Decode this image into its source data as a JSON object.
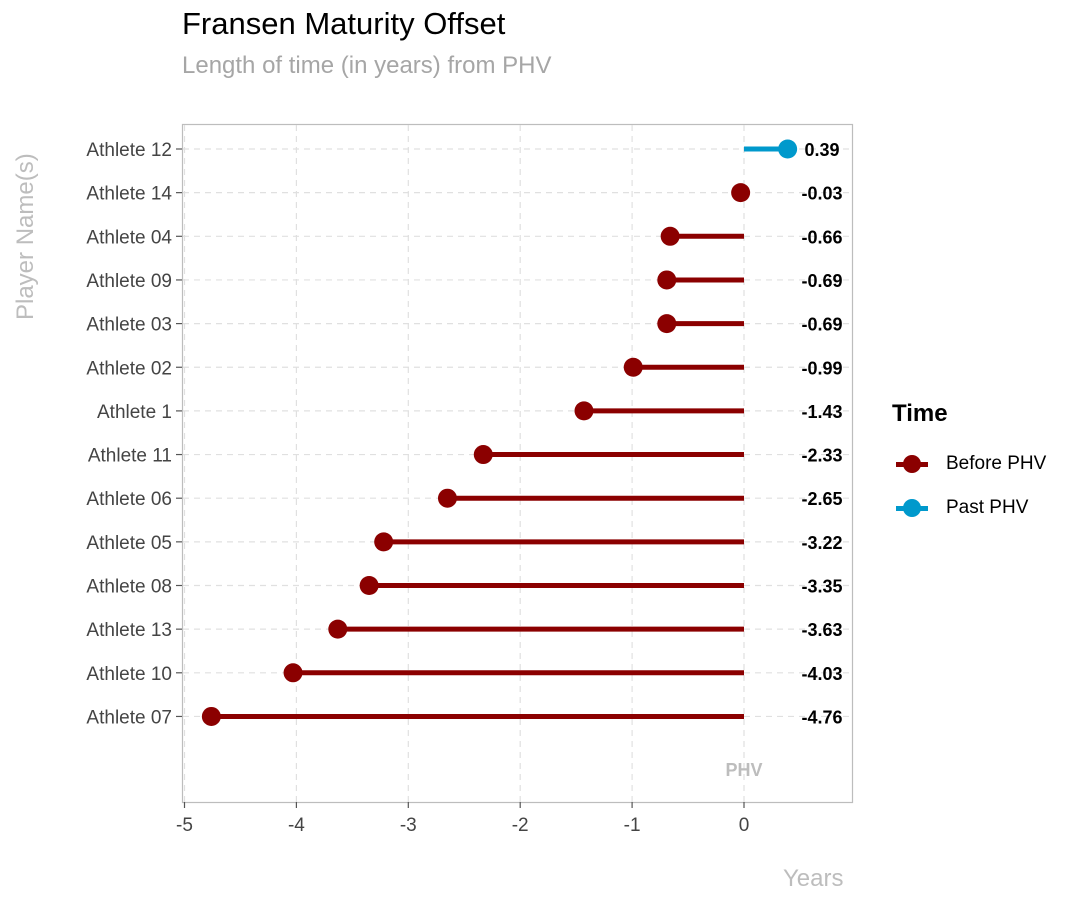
{
  "title": "Fransen Maturity Offset",
  "subtitle": "Length of time (in years) from PHV",
  "chart_data": {
    "type": "lollipop",
    "title": "Fransen Maturity Offset",
    "subtitle": "Length of time (in years) from PHV",
    "xlabel": "Years",
    "ylabel": "Player Name(s)",
    "xlim": [
      -5,
      0.9
    ],
    "x_ticks": [
      -5,
      -4,
      -3,
      -2,
      -1,
      0
    ],
    "x_tick_labels": [
      "-5",
      "-4",
      "-3",
      "-2",
      "-1",
      "0"
    ],
    "baseline": 0,
    "baseline_annotation": "PHV",
    "grid": true,
    "legend_title": "Time",
    "legend_position": "right",
    "series": [
      {
        "name": "Before PHV",
        "color": "#8b0000"
      },
      {
        "name": "Past PHV",
        "color": "#0099cc"
      }
    ],
    "categories": [
      "Athlete 12",
      "Athlete 14",
      "Athlete 04",
      "Athlete 09",
      "Athlete 03",
      "Athlete 02",
      "Athlete 1",
      "Athlete 11",
      "Athlete 06",
      "Athlete 05",
      "Athlete 08",
      "Athlete 13",
      "Athlete 10",
      "Athlete 07"
    ],
    "values": [
      0.39,
      -0.03,
      -0.66,
      -0.69,
      -0.69,
      -0.99,
      -1.43,
      -2.33,
      -2.65,
      -3.22,
      -3.35,
      -3.63,
      -4.03,
      -4.76
    ],
    "value_labels": [
      "0.39",
      "-0.03",
      "-0.66",
      "-0.69",
      "-0.69",
      "-0.99",
      "-1.43",
      "-2.33",
      "-2.65",
      "-3.22",
      "-3.35",
      "-3.63",
      "-4.03",
      "-4.76"
    ],
    "groups": [
      "Past PHV",
      "Before PHV",
      "Before PHV",
      "Before PHV",
      "Before PHV",
      "Before PHV",
      "Before PHV",
      "Before PHV",
      "Before PHV",
      "Before PHV",
      "Before PHV",
      "Before PHV",
      "Before PHV",
      "Before PHV"
    ]
  }
}
